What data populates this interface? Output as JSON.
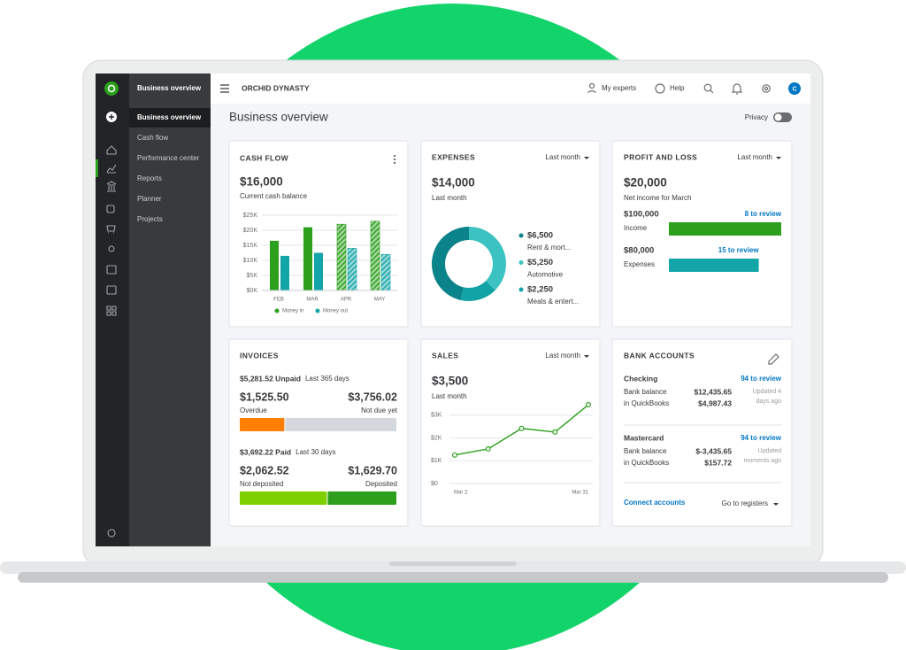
{
  "sidebar": {
    "title": "Business overview",
    "nav": [
      "Business overview",
      "Cash flow",
      "Performance center",
      "Reports",
      "Planner",
      "Projects"
    ]
  },
  "header": {
    "company": "ORCHID DYNASTY",
    "links": [
      "My experts",
      "Help"
    ],
    "avatar": "C"
  },
  "page": {
    "title": "Business overview",
    "privacy": "Privacy"
  },
  "chart_data": [
    {
      "type": "bar",
      "title": "CASH FLOW",
      "amount": "$16,000",
      "subtitle": "Current cash balance",
      "categories": [
        "FEB",
        "MAR",
        "APR",
        "MAY"
      ],
      "series": [
        {
          "name": "Money in",
          "color": "#2ca01c",
          "values": [
            16.5,
            21,
            22,
            23
          ]
        },
        {
          "name": "Money out",
          "color": "#14a5a8",
          "values": [
            11.5,
            12.5,
            14,
            12
          ]
        }
      ],
      "hatched": [
        false,
        false,
        true,
        true
      ],
      "ylim": [
        0,
        25
      ],
      "yticks": [
        {
          "value": 0,
          "label": "$0K"
        },
        {
          "value": 5,
          "label": "$5K"
        },
        {
          "value": 10,
          "label": "$10K"
        },
        {
          "value": 15,
          "label": "$15K"
        },
        {
          "value": 20,
          "label": "$20K"
        },
        {
          "value": 25,
          "label": "$25K"
        }
      ],
      "grid": true
    },
    {
      "type": "donut",
      "title": "EXPENSES",
      "period": "Last month",
      "amount": "$14,000",
      "subtitle": "Last month",
      "categories": [
        "Rent & mort...",
        "Automotive",
        "Meals & entert..."
      ],
      "values": [
        6500,
        5250,
        2250
      ],
      "value_labels": [
        "$6,500",
        "$5,250",
        "$2,250"
      ],
      "colors": [
        "#0b838a",
        "#3cc3c1",
        "#11a3a6"
      ]
    },
    {
      "type": "hbar",
      "title": "PROFIT AND LOSS",
      "period": "Last month",
      "amount": "$20,000",
      "subtitle": "Net income for March",
      "categories": [
        "Income",
        "Expenses"
      ],
      "values": [
        100000,
        80000
      ],
      "value_labels": [
        "$100,000",
        "$80,000"
      ],
      "annotations": [
        "8 to review",
        "15 to review"
      ],
      "colors": [
        "#2ca01c",
        "#14a5a8"
      ],
      "xlim": [
        0,
        100000
      ]
    },
    {
      "type": "line",
      "title": "SALES",
      "period": "Last month",
      "amount": "$3,500",
      "subtitle": "Last month",
      "categories": [
        "Mar 2",
        null,
        null,
        null,
        "Mar 31"
      ],
      "values": [
        1250,
        1520,
        2420,
        2260,
        3460
      ],
      "color": "#2ca01c",
      "ylim": [
        0,
        3500
      ],
      "yticks": [
        {
          "value": 0,
          "label": "$0"
        },
        {
          "value": 1000,
          "label": "$1K"
        },
        {
          "value": 2000,
          "label": "$2K"
        },
        {
          "value": 3000,
          "label": "$3K"
        }
      ],
      "grid": true
    }
  ],
  "invoices": {
    "title": "INVOICES",
    "groups": [
      {
        "summary": "$5,281.52 Unpaid",
        "period": "Last 365 days",
        "segments": [
          {
            "value": 1525.5,
            "label": "$1,525.50",
            "name": "Overdue",
            "color": "#ff8000"
          },
          {
            "value": 3756.02,
            "label": "$3,756.02",
            "name": "Not due yet",
            "color": "#d4d7dc"
          }
        ]
      },
      {
        "summary": "$3,692.22 Paid",
        "period": "Last 30 days",
        "segments": [
          {
            "value": 2062.52,
            "label": "$2,062.52",
            "name": "Not deposited",
            "color": "#7fd000"
          },
          {
            "value": 1629.7,
            "label": "$1,629.70",
            "name": "Deposited",
            "color": "#2ca01c"
          }
        ]
      }
    ]
  },
  "bank_accounts": {
    "title": "BANK ACCOUNTS",
    "accounts": [
      {
        "name": "Checking",
        "review": "94 to review",
        "rows": [
          [
            "Bank balance",
            "$12,435.65"
          ],
          [
            "in QuickBooks",
            "$4,987.43"
          ]
        ],
        "updated": [
          "Updated 4",
          "days ago"
        ]
      },
      {
        "name": "Mastercard",
        "review": "94 to review",
        "rows": [
          [
            "Bank balance",
            "$-3,435.65"
          ],
          [
            "in QuickBooks",
            "$157.72"
          ]
        ],
        "updated": [
          "Updated",
          "moments ago"
        ]
      }
    ],
    "connect": "Connect accounts",
    "registers": "Go to registers"
  }
}
